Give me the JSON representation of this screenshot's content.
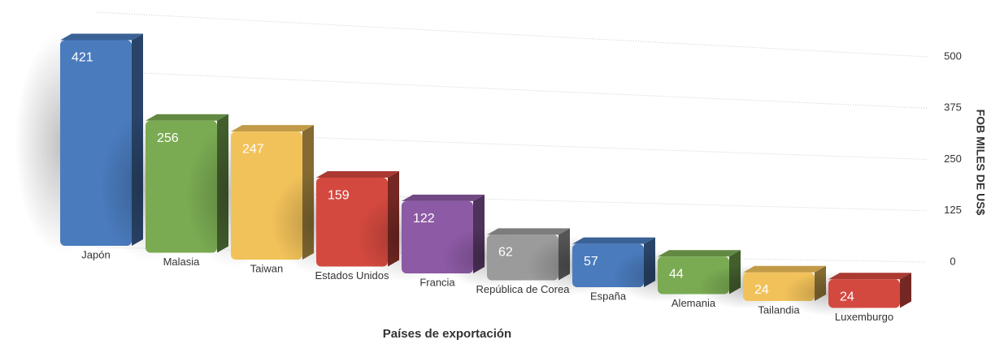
{
  "chart_data": {
    "type": "bar3d",
    "x_label": "Países de exportación",
    "y_label": "FOB MILES DE US$",
    "categories": [
      "Japón",
      "Malasia",
      "Taiwan",
      "Estados Unidos",
      "Francia",
      "República de Corea",
      "España",
      "Alemania",
      "Tailandia",
      "Luxemburgo"
    ],
    "values": [
      421,
      256,
      247,
      159,
      122,
      62,
      57,
      44,
      24,
      24
    ],
    "colors": [
      "#4a7bbd",
      "#7aab52",
      "#f2c25a",
      "#d4493f",
      "#8d5aa5",
      "#9b9b9b",
      "#4a7bbd",
      "#7aab52",
      "#f2c25a",
      "#d4493f"
    ],
    "ylim": [
      0,
      500
    ],
    "yticks": [
      0,
      125,
      250,
      375,
      500
    ],
    "grid": true
  }
}
